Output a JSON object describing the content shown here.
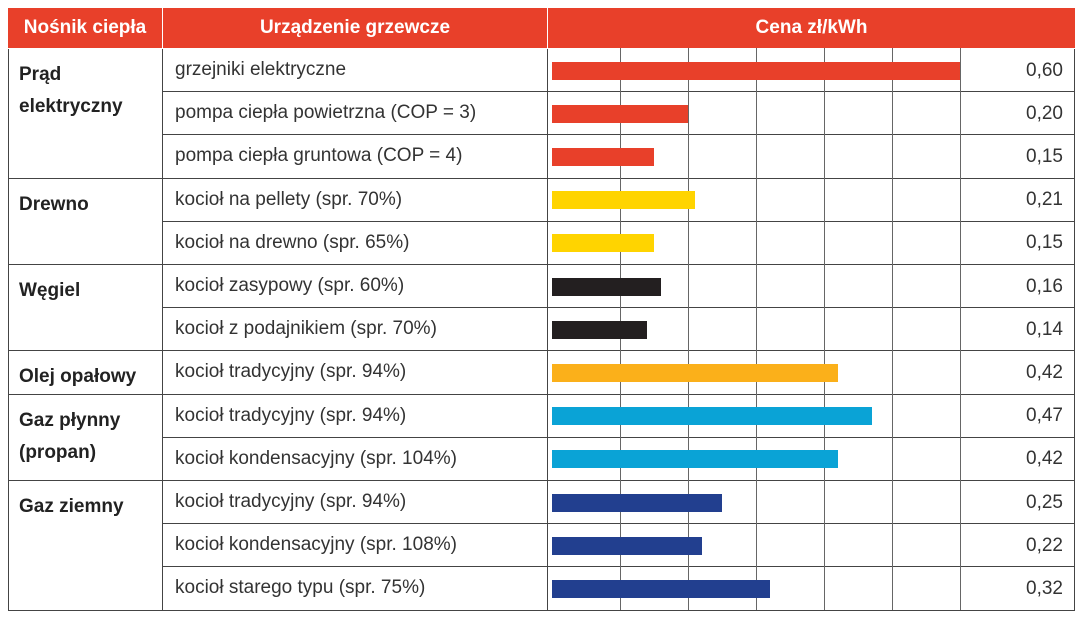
{
  "chart_data": {
    "type": "bar",
    "orientation": "horizontal",
    "columns": [
      "Nośnik ciepła",
      "Urządzenie grzewcze",
      "Cena zł/kWh"
    ],
    "xlim": [
      0,
      0.6
    ],
    "grid": true,
    "gridlines": [
      0.1,
      0.2,
      0.3,
      0.4,
      0.5,
      0.6
    ],
    "header_color": "#e8402a",
    "groups": [
      {
        "carrier": "Prąd elektryczny",
        "color": "#e8402a",
        "rows": [
          {
            "device": "grzejniki elektryczne",
            "value": 0.6,
            "label": "0,60"
          },
          {
            "device": "pompa ciepła powietrzna (COP = 3)",
            "value": 0.2,
            "label": "0,20"
          },
          {
            "device": "pompa ciepła gruntowa (COP = 4)",
            "value": 0.15,
            "label": "0,15"
          }
        ]
      },
      {
        "carrier": "Drewno",
        "color": "#ffd400",
        "rows": [
          {
            "device": "kocioł na pellety (spr. 70%)",
            "value": 0.21,
            "label": "0,21"
          },
          {
            "device": "kocioł na drewno (spr. 65%)",
            "value": 0.15,
            "label": "0,15"
          }
        ]
      },
      {
        "carrier": "Węgiel",
        "color": "#231f20",
        "rows": [
          {
            "device": "kocioł zasypowy (spr. 60%)",
            "value": 0.16,
            "label": "0,16"
          },
          {
            "device": "kocioł z podajnikiem (spr. 70%)",
            "value": 0.14,
            "label": "0,14"
          }
        ]
      },
      {
        "carrier": "Olej opałowy",
        "color": "#fbb01a",
        "rows": [
          {
            "device": "kocioł tradycyjny (spr. 94%)",
            "value": 0.42,
            "label": "0,42"
          }
        ]
      },
      {
        "carrier": "Gaz płynny (propan)",
        "color": "#0aa3d6",
        "rows": [
          {
            "device": "kocioł tradycyjny (spr. 94%)",
            "value": 0.47,
            "label": "0,47"
          },
          {
            "device": "kocioł kondensacyjny (spr. 104%)",
            "value": 0.42,
            "label": "0,42"
          }
        ]
      },
      {
        "carrier": "Gaz ziemny",
        "color": "#223f8f",
        "rows": [
          {
            "device": "kocioł tradycyjny (spr. 94%)",
            "value": 0.25,
            "label": "0,25"
          },
          {
            "device": "kocioł kondensacyjny (spr. 108%)",
            "value": 0.22,
            "label": "0,22"
          },
          {
            "device": "kocioł starego typu (spr. 75%)",
            "value": 0.32,
            "label": "0,32"
          }
        ]
      }
    ]
  }
}
